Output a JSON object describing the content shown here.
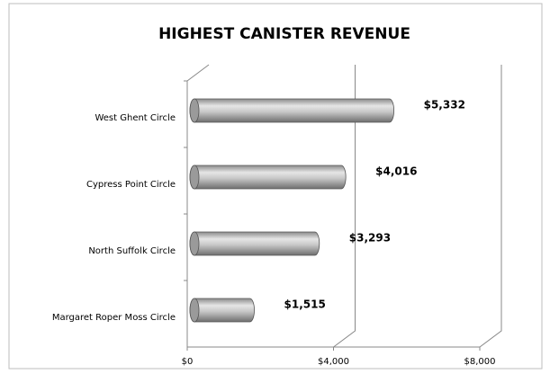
{
  "chart_data": {
    "type": "bar",
    "orientation": "horizontal",
    "title": "HIGHEST CANISTER REVENUE",
    "categories": [
      "West Ghent Circle",
      "Cypress Point Circle",
      "North Suffolk Circle",
      "Margaret Roper Moss Circle"
    ],
    "values": [
      5332,
      4016,
      3293,
      1515
    ],
    "value_labels": [
      "$5,332",
      "$4,016",
      "$3,293",
      "$1,515"
    ],
    "color": "#b8b8b8",
    "xlim": [
      0,
      8000
    ],
    "xticks": [
      {
        "value": 0,
        "label": "$0"
      },
      {
        "value": 4000,
        "label": "$4,000"
      },
      {
        "value": 8000,
        "label": "$8,000"
      }
    ],
    "grid": true
  }
}
